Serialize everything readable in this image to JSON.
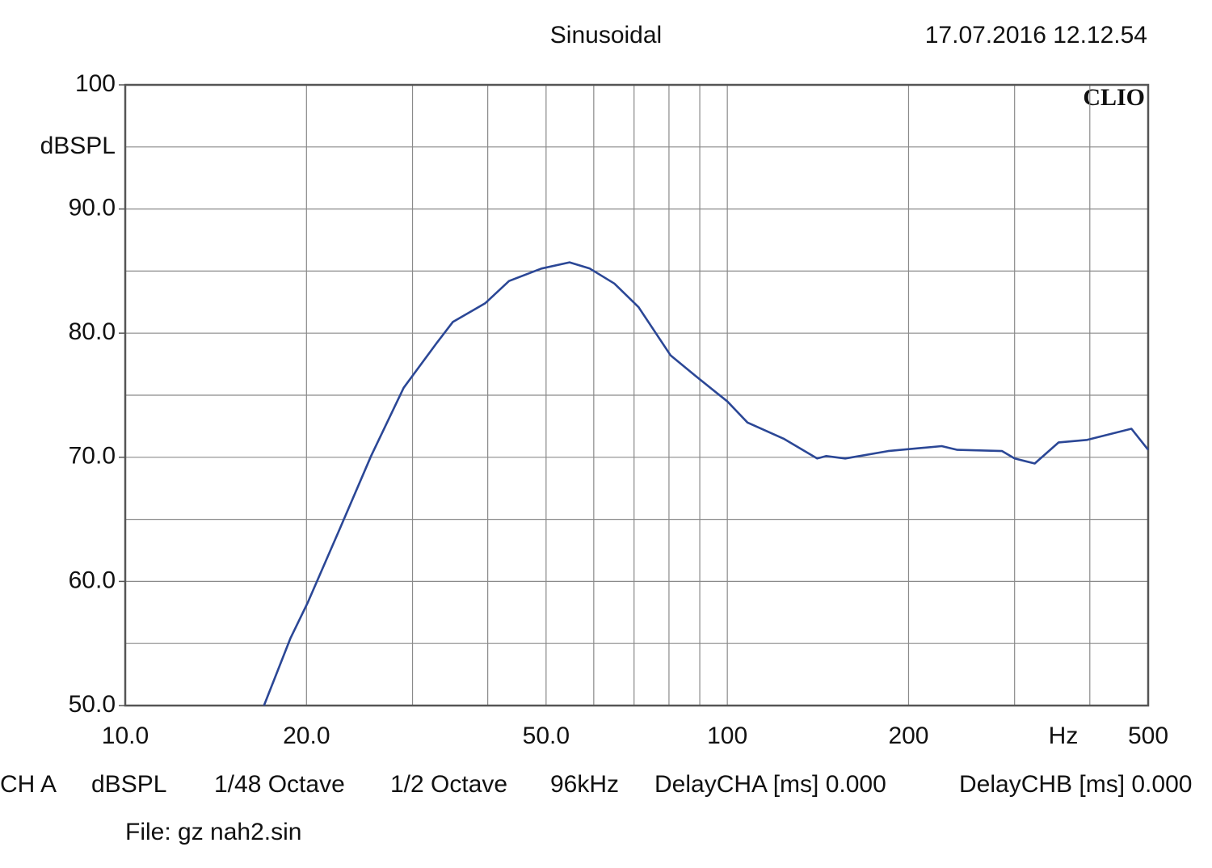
{
  "chart_data": {
    "type": "line",
    "title": "Sinusoidal",
    "timestamp": "17.07.2016 12.12.54",
    "brand": "CLIO",
    "y_label": "dBSPL",
    "x_label": "Hz",
    "x_scale": "log",
    "grid": true,
    "xlim": [
      10,
      500
    ],
    "ylim": [
      50,
      100
    ],
    "xticks": [
      {
        "value": 10,
        "label": "10.0"
      },
      {
        "value": 20,
        "label": "20.0"
      },
      {
        "value": 50,
        "label": "50.0"
      },
      100,
      200,
      500
    ],
    "xminor": [
      30,
      40,
      60,
      70,
      80,
      90,
      300,
      400
    ],
    "yticks": [
      {
        "value": 50,
        "label": "50.0"
      },
      {
        "value": 60,
        "label": "60.0"
      },
      {
        "value": 70,
        "label": "70.0"
      },
      {
        "value": 80,
        "label": "80.0"
      },
      {
        "value": 90,
        "label": "90.0"
      },
      100
    ],
    "yminor": [
      55,
      65,
      75,
      85,
      95
    ],
    "x": [
      17.0,
      18.8,
      20.1,
      22.7,
      25.6,
      29.0,
      32.9,
      35.0,
      39.6,
      43.4,
      49.1,
      54.7,
      59.1,
      64.9,
      71.2,
      80.5,
      88.3,
      100,
      108,
      124,
      141,
      146,
      157,
      185,
      227,
      241,
      286,
      300,
      324,
      355,
      396,
      469,
      500
    ],
    "series": [
      {
        "color": "#2b4796",
        "values": [
          50.0,
          55.4,
          58.3,
          64.2,
          70.1,
          75.6,
          79.2,
          80.9,
          82.4,
          84.2,
          85.2,
          85.7,
          85.2,
          84.0,
          82.1,
          78.2,
          76.6,
          74.5,
          72.8,
          71.5,
          69.9,
          70.1,
          69.9,
          70.5,
          70.9,
          70.6,
          70.5,
          69.9,
          69.5,
          71.2,
          71.4,
          72.3,
          70.6
        ]
      }
    ]
  },
  "footer": {
    "settings": [
      "CH A",
      "dBSPL",
      "1/48 Octave",
      "1/2 Octave",
      "96kHz",
      "DelayCHA [ms] 0.000",
      "DelayCHB [ms] 0.000"
    ],
    "file": "File: gz nah2.sin"
  }
}
